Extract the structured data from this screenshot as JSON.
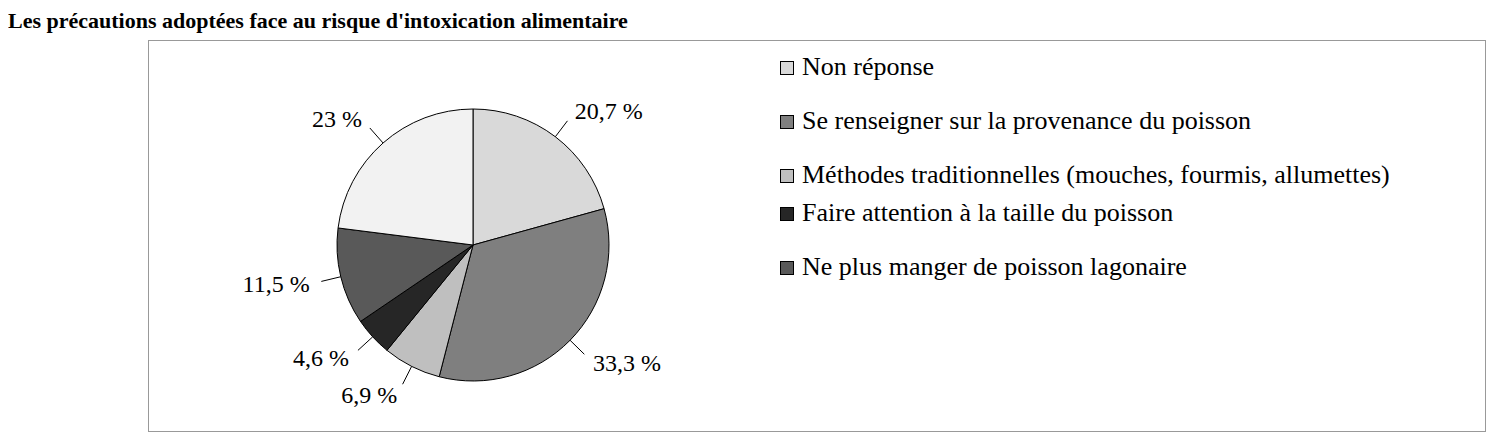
{
  "chart_data": {
    "type": "pie",
    "title": "Les précautions adoptées face au risque d'intoxication alimentaire",
    "categories": [
      "Non réponse",
      "Se renseigner sur la provenance du poisson",
      "Méthodes traditionnelles (mouches, fourmis, allumettes)",
      "Faire attention à la taille du poisson",
      "Ne plus manger de poisson lagonaire",
      null
    ],
    "values": [
      20.7,
      33.3,
      6.9,
      4.6,
      11.5,
      23
    ],
    "value_labels": [
      "20,7 %",
      "33,3 %",
      "6,9 %",
      "4,6 %",
      "11,5 %",
      "23 %"
    ],
    "colors": [
      "#d9d9d9",
      "#7f7f7f",
      "#bfbfbf",
      "#262626",
      "#595959",
      "#f2f2f2"
    ],
    "data_labels": true,
    "legend": "right"
  }
}
